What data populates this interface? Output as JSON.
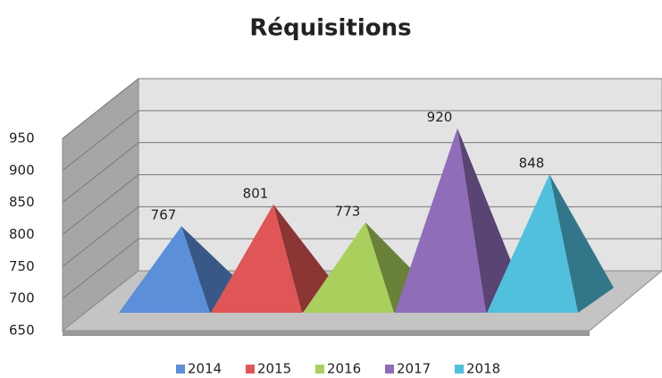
{
  "chart_data": {
    "type": "pyramid3d",
    "title": "Réquisitions",
    "series": [
      {
        "name": "2014",
        "color": "#5b8fd9",
        "values": [
          767
        ]
      },
      {
        "name": "2015",
        "color": "#e05656",
        "values": [
          801
        ]
      },
      {
        "name": "2016",
        "color": "#a9d05c",
        "values": [
          773
        ]
      },
      {
        "name": "2017",
        "color": "#8f6db9",
        "values": [
          920
        ]
      },
      {
        "name": "2018",
        "color": "#50c0dd",
        "values": [
          848
        ]
      }
    ],
    "ylim": [
      650,
      950
    ],
    "yticks": [
      650,
      700,
      750,
      800,
      850,
      900,
      950
    ],
    "grid": true,
    "legend": "bottom"
  }
}
